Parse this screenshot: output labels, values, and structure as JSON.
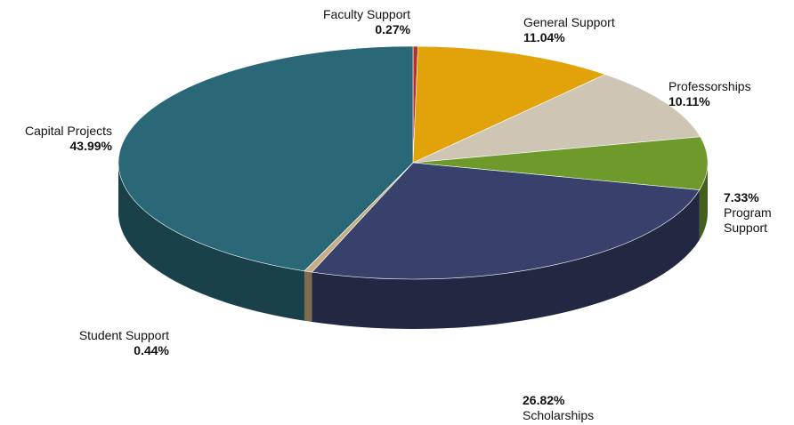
{
  "chart_data": {
    "type": "pie",
    "slices": [
      {
        "label": "Faculty Support",
        "value": 0.27,
        "value_label": "0.27%",
        "color": "#B5302A"
      },
      {
        "label": "General Support",
        "value": 11.04,
        "value_label": "11.04%",
        "color": "#E2A20A"
      },
      {
        "label": "Professorships",
        "value": 10.11,
        "value_label": "10.11%",
        "color": "#CFC5B4"
      },
      {
        "label": "Program Support",
        "value": 7.33,
        "value_label": "7.33%",
        "color": "#6E9A2C"
      },
      {
        "label": "Scholarships",
        "value": 26.82,
        "value_label": "26.82%",
        "color": "#37416B"
      },
      {
        "label": "Student Support",
        "value": 0.44,
        "value_label": "0.44%",
        "color": "#C9AE84"
      },
      {
        "label": "Capital Projects",
        "value": 43.99,
        "value_label": "43.99%",
        "color": "#2A6878"
      }
    ]
  },
  "labels": {
    "faculty": {
      "name": "Faculty Support",
      "pct": "0.27%"
    },
    "general": {
      "name": "General Support",
      "pct": "11.04%"
    },
    "professorships": {
      "name": "Professorships",
      "pct": "10.11%"
    },
    "program": {
      "pct": "7.33%",
      "name_line1": "Program",
      "name_line2": "Support"
    },
    "scholarships": {
      "pct": "26.82%",
      "name": "Scholarships"
    },
    "student": {
      "name": "Student Support",
      "pct": "0.44%"
    },
    "capital": {
      "name": "Capital Projects",
      "pct": "43.99%"
    }
  }
}
